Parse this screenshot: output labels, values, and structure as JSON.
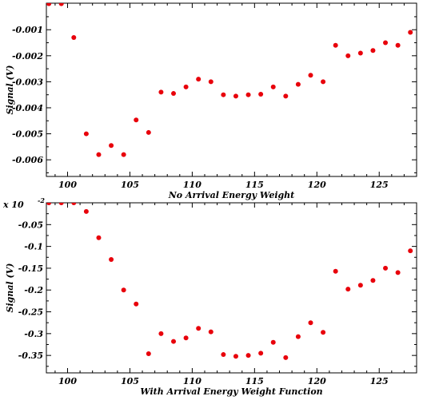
{
  "chart_data": [
    {
      "type": "scatter",
      "title": "",
      "xlabel": "No Arrival Energy Weight",
      "ylabel": "Signal (V)",
      "y_exponent": "",
      "xlim": [
        98.3,
        128
      ],
      "ylim": [
        -0.00664,
        2e-05
      ],
      "x_ticks": [
        100,
        105,
        110,
        115,
        120,
        125
      ],
      "y_ticks": [
        -0.001,
        -0.002,
        -0.003,
        -0.004,
        -0.005,
        -0.006
      ],
      "y_tick_labels": [
        "-0.001",
        "-0.002",
        "-0.003",
        "-0.004",
        "-0.005",
        "-0.006"
      ],
      "x_tick_labels": [
        "100",
        "105",
        "110",
        "115",
        "120",
        "125"
      ],
      "marker_color": "#e8000b",
      "grid": false,
      "series": [
        {
          "x": [
            98.5,
            99.5,
            100.5,
            101.5,
            102.5,
            103.5,
            104.5,
            105.5,
            106.5,
            107.5,
            108.5,
            109.5,
            110.5,
            111.5,
            112.5,
            113.5,
            114.5,
            115.5,
            116.5,
            117.5,
            118.5,
            119.5,
            120.5,
            121.5,
            122.5,
            123.5,
            124.5,
            125.5,
            126.5,
            127.5
          ],
          "y": [
            0.0,
            0.0,
            -0.0013,
            -0.005,
            -0.0058,
            -0.00545,
            -0.0058,
            -0.00447,
            -0.00495,
            -0.0034,
            -0.00345,
            -0.0032,
            -0.0029,
            -0.003,
            -0.0035,
            -0.00355,
            -0.0035,
            -0.00348,
            -0.0032,
            -0.00355,
            -0.0031,
            -0.00275,
            -0.003,
            -0.0016,
            -0.002,
            -0.0019,
            -0.0018,
            -0.0015,
            -0.0016,
            -0.0011
          ]
        }
      ]
    },
    {
      "type": "scatter",
      "title": "",
      "xlabel": "With Arrival Energy Weight Function",
      "ylabel": "Signal (V)",
      "y_exponent": "x 10",
      "y_exponent_power": "-2",
      "xlim": [
        98.3,
        128
      ],
      "ylim": [
        -0.39,
        0.0
      ],
      "x_ticks": [
        100,
        105,
        110,
        115,
        120,
        125
      ],
      "y_ticks": [
        -0.05,
        -0.1,
        -0.15,
        -0.2,
        -0.25,
        -0.3,
        -0.35
      ],
      "y_tick_labels": [
        "-0.05",
        "-0.1",
        "-0.15",
        "-0.2",
        "-0.25",
        "-0.3",
        "-0.35"
      ],
      "x_tick_labels": [
        "100",
        "105",
        "110",
        "115",
        "120",
        "125"
      ],
      "marker_color": "#e8000b",
      "grid": false,
      "series": [
        {
          "x": [
            98.5,
            99.5,
            100.5,
            101.5,
            102.5,
            103.5,
            104.5,
            105.5,
            106.5,
            107.5,
            108.5,
            109.5,
            110.5,
            111.5,
            112.5,
            113.5,
            114.5,
            115.5,
            116.5,
            117.5,
            118.5,
            119.5,
            120.5,
            121.5,
            122.5,
            123.5,
            124.5,
            125.5,
            126.5,
            127.5
          ],
          "y": [
            0.0,
            0.0,
            0.0,
            -0.02,
            -0.08,
            -0.13,
            -0.2,
            -0.232,
            -0.346,
            -0.3,
            -0.318,
            -0.31,
            -0.288,
            -0.296,
            -0.348,
            -0.352,
            -0.35,
            -0.345,
            -0.32,
            -0.355,
            -0.307,
            -0.275,
            -0.297,
            -0.157,
            -0.198,
            -0.189,
            -0.178,
            -0.15,
            -0.16,
            -0.11
          ]
        }
      ]
    }
  ]
}
